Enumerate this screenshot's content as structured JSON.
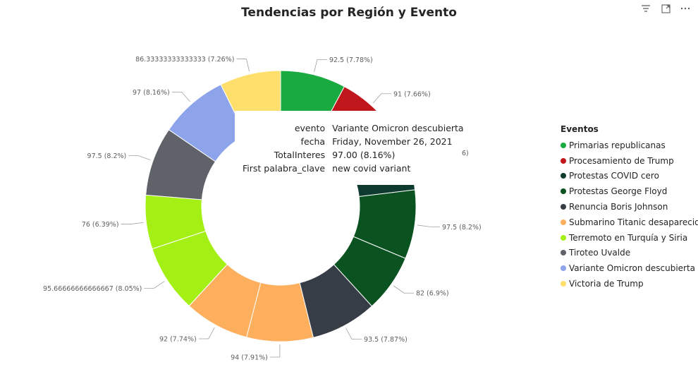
{
  "chart_data": {
    "type": "pie",
    "title": "Tendencias por Región y Evento",
    "legend_title": "Eventos",
    "legend_position": "right",
    "legend": [
      {
        "name": "Primarias republicanas",
        "color": "#1AAB40"
      },
      {
        "name": "Procesamiento de Trump",
        "color": "#C0171C"
      },
      {
        "name": "Protestas COVID cero",
        "color": "#0E3A2F"
      },
      {
        "name": "Protestas George Floyd",
        "color": "#0B5221"
      },
      {
        "name": "Renuncia Boris Johnson",
        "color": "#373D47"
      },
      {
        "name": "Submarino Titanic desaparecido",
        "color": "#FEAF5E"
      },
      {
        "name": "Terremoto en Turquía y Siria",
        "color": "#A4F015"
      },
      {
        "name": "Tiroteo Uvalde",
        "color": "#5F6269"
      },
      {
        "name": "Variante Omicron descubierta",
        "color": "#8DA4EB"
      },
      {
        "name": "Victoria de Trump",
        "color": "#FFDF6B"
      }
    ],
    "slices": [
      {
        "event": "Primarias republicanas",
        "value": 92.5,
        "label": "92.5 (7.78%)",
        "color": "#1AAB40"
      },
      {
        "event": "Procesamiento de Trump",
        "value": 91,
        "label": "91 (7.66%)",
        "color": "#C0171C"
      },
      {
        "event": "Protestas COVID cero",
        "value": 90,
        "label": "",
        "color": "#0E3A2F"
      },
      {
        "event": "Protestas George Floyd",
        "value": 97.5,
        "label": "97.5 (8.2%)",
        "color": "#0B5221"
      },
      {
        "event": "Protestas George Floyd",
        "value": 82,
        "label": "82 (6.9%)",
        "color": "#0B5221"
      },
      {
        "event": "Renuncia Boris Johnson",
        "value": 93.5,
        "label": "93.5 (7.87%)",
        "color": "#373D47"
      },
      {
        "event": "Submarino Titanic desaparecido",
        "value": 94,
        "label": "94 (7.91%)",
        "color": "#FEAF5E"
      },
      {
        "event": "Submarino Titanic desaparecido",
        "value": 92,
        "label": "92 (7.74%)",
        "color": "#FEAF5E"
      },
      {
        "event": "Terremoto en Turquía y Siria",
        "value": 95.66666666666667,
        "label": "95.66666666666667 (8.05%)",
        "color": "#A4F015"
      },
      {
        "event": "Terremoto en Turquía y Siria",
        "value": 76,
        "label": "76 (6.39%)",
        "color": "#A4F015"
      },
      {
        "event": "Tiroteo Uvalde",
        "value": 97.5,
        "label": "97.5 (8.2%)",
        "color": "#5F6269"
      },
      {
        "event": "Variante Omicron descubierta",
        "value": 97,
        "label": "97 (8.16%)",
        "color": "#8DA4EB"
      },
      {
        "event": "Victoria de Trump",
        "value": 86.33333333333333,
        "label": "86.33333333333333 (7.26%)",
        "color": "#FFDF6B"
      }
    ],
    "partial_label": "6)"
  },
  "tooltip": {
    "rows": [
      {
        "key": "evento",
        "value": "Variante Omicron descubierta"
      },
      {
        "key": "fecha",
        "value": "Friday, November 26, 2021"
      },
      {
        "key": "TotalInteres",
        "value": "97.00 (8.16%)"
      },
      {
        "key": "First palabra_clave",
        "value": "new covid variant"
      }
    ]
  },
  "header_icons": [
    "filter-icon",
    "focus-mode-icon",
    "more-options-icon"
  ]
}
